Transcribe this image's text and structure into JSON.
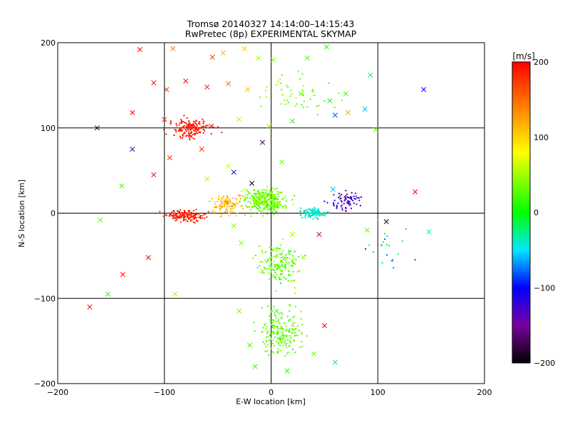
{
  "chart_data": {
    "type": "scatter",
    "title": "Tromsø 20140327 14:14:00–14:15:43",
    "subtitle": "RwPretec (8p) EXPERIMENTAL SKYMAP",
    "xlabel": "E-W location [km]",
    "ylabel": "N-S location [km]",
    "xlim": [
      -200,
      200
    ],
    "ylim": [
      -200,
      200
    ],
    "x_ticks": [
      -200,
      -100,
      0,
      100,
      200
    ],
    "y_ticks": [
      -200,
      -100,
      0,
      100,
      200
    ],
    "grid": true,
    "colorbar": {
      "unit": "[m/s]",
      "range": [
        -200,
        200
      ],
      "ticks": [
        200,
        100,
        0,
        -100,
        -200
      ],
      "colormap": "rainbow: black(-200) → purple → blue(-100) → cyan → green(0) → yellow(100) → orange → red(200)"
    },
    "series": [
      {
        "marker": "cross",
        "points": [
          [
            -123,
            192,
            200
          ],
          [
            -92,
            193,
            150
          ],
          [
            -55,
            183,
            180
          ],
          [
            -45,
            188,
            120
          ],
          [
            -25,
            193,
            110
          ],
          [
            -12,
            182,
            50
          ],
          [
            2,
            180,
            40
          ],
          [
            34,
            182,
            20
          ],
          [
            52,
            195,
            10
          ],
          [
            93,
            162,
            -20
          ],
          [
            -110,
            153,
            200
          ],
          [
            -98,
            145,
            180
          ],
          [
            -80,
            155,
            200
          ],
          [
            -60,
            148,
            190
          ],
          [
            -40,
            152,
            150
          ],
          [
            -22,
            145,
            110
          ],
          [
            28,
            140,
            30
          ],
          [
            55,
            132,
            -10
          ],
          [
            70,
            140,
            20
          ],
          [
            88,
            122,
            -60
          ],
          [
            -130,
            118,
            200
          ],
          [
            -100,
            110,
            190
          ],
          [
            -78,
            103,
            200
          ],
          [
            -56,
            102,
            200
          ],
          [
            -30,
            110,
            100
          ],
          [
            -2,
            102,
            50
          ],
          [
            20,
            108,
            10
          ],
          [
            60,
            115,
            -80
          ],
          [
            72,
            118,
            120
          ],
          [
            98,
            98,
            30
          ],
          [
            -163,
            100,
            -200
          ],
          [
            -130,
            75,
            -120
          ],
          [
            -95,
            65,
            180
          ],
          [
            -75,
            90,
            200
          ],
          [
            -65,
            75,
            180
          ],
          [
            -40,
            55,
            60
          ],
          [
            -18,
            35,
            -200
          ],
          [
            10,
            60,
            30
          ],
          [
            -8,
            83,
            -170
          ],
          [
            143,
            145,
            -100
          ],
          [
            -140,
            32,
            20
          ],
          [
            -110,
            45,
            200
          ],
          [
            -60,
            40,
            100
          ],
          [
            -35,
            48,
            -100
          ],
          [
            58,
            28,
            -60
          ],
          [
            -160,
            -8,
            30
          ],
          [
            -115,
            -52,
            200
          ],
          [
            -28,
            -35,
            40
          ],
          [
            -8,
            -68,
            50
          ],
          [
            30,
            -52,
            40
          ],
          [
            -139,
            -72,
            200
          ],
          [
            -153,
            -95,
            10
          ],
          [
            -90,
            -95,
            50
          ],
          [
            -30,
            -115,
            40
          ],
          [
            5,
            -115,
            20
          ],
          [
            -170,
            -110,
            200
          ],
          [
            -20,
            -155,
            20
          ],
          [
            10,
            -148,
            20
          ],
          [
            40,
            -165,
            30
          ],
          [
            60,
            -175,
            -30
          ],
          [
            -15,
            -180,
            20
          ],
          [
            15,
            -185,
            10
          ],
          [
            50,
            -132,
            200
          ],
          [
            90,
            -20,
            30
          ],
          [
            108,
            -10,
            -200
          ],
          [
            135,
            25,
            200
          ],
          [
            148,
            -22,
            -40
          ],
          [
            -35,
            -15,
            40
          ],
          [
            20,
            -25,
            50
          ],
          [
            45,
            -25,
            200
          ]
        ]
      },
      {
        "marker": "dot",
        "clusters": [
          {
            "center": [
              -75,
              100
            ],
            "spread": [
              25,
              15
            ],
            "count": 150,
            "v_range": [
              180,
              200
            ]
          },
          {
            "center": [
              -80,
              -3
            ],
            "spread": [
              25,
              8
            ],
            "count": 160,
            "v_range": [
              170,
              200
            ]
          },
          {
            "center": [
              -40,
              10
            ],
            "spread": [
              20,
              15
            ],
            "count": 110,
            "v_range": [
              90,
              140
            ]
          },
          {
            "center": [
              -5,
              15
            ],
            "spread": [
              25,
              18
            ],
            "count": 330,
            "v_range": [
              10,
              60
            ]
          },
          {
            "center": [
              40,
              0
            ],
            "spread": [
              15,
              8
            ],
            "count": 110,
            "v_range": [
              -60,
              -20
            ]
          },
          {
            "center": [
              70,
              15
            ],
            "spread": [
              20,
              15
            ],
            "count": 70,
            "v_range": [
              -150,
              -100
            ]
          },
          {
            "center": [
              8,
              -60
            ],
            "spread": [
              25,
              30
            ],
            "count": 170,
            "v_range": [
              10,
              50
            ]
          },
          {
            "center": [
              10,
              -140
            ],
            "spread": [
              25,
              35
            ],
            "count": 200,
            "v_range": [
              20,
              40
            ]
          },
          {
            "center": [
              30,
              140
            ],
            "spread": [
              55,
              35
            ],
            "count": 50,
            "v_range": [
              20,
              50
            ]
          },
          {
            "center": [
              110,
              -40
            ],
            "spread": [
              30,
              40
            ],
            "count": 20,
            "v_range": [
              -100,
              0
            ]
          }
        ]
      }
    ]
  }
}
